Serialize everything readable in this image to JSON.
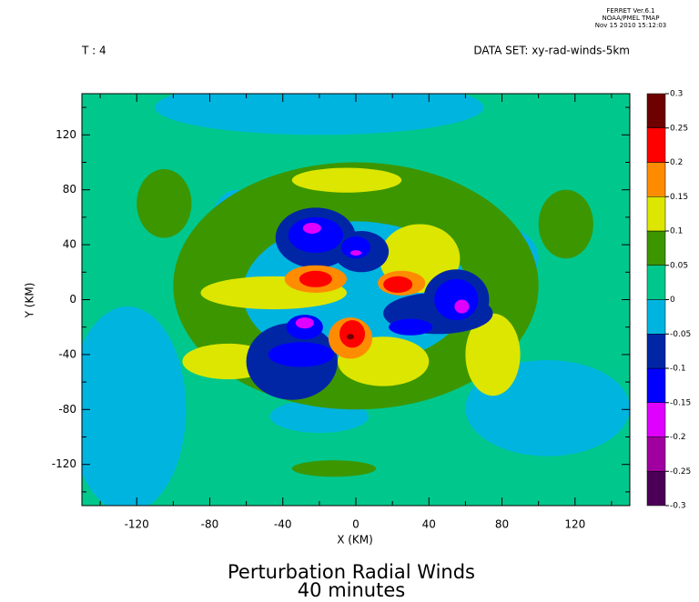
{
  "chart_data": {
    "type": "contour",
    "stamp": [
      "FERRET Ver.6.1",
      "NOAA/PMEL TMAP",
      "Nov 15 2010 15:12:03"
    ],
    "time_label": "T : 4",
    "dataset_label": "DATA SET: xy-rad-winds-5km",
    "title": "Perturbation Radial Winds",
    "subtitle": "40 minutes",
    "xlabel": "X (KM)",
    "ylabel": "Y (KM)",
    "xlim": [
      -150,
      150
    ],
    "ylim": [
      -150,
      150
    ],
    "xticks": [
      -120,
      -80,
      -40,
      0,
      40,
      80,
      120
    ],
    "yticks": [
      -120,
      -80,
      -40,
      0,
      40,
      80,
      120
    ],
    "xminor": [
      -140,
      -100,
      -60,
      -20,
      20,
      60,
      100,
      140
    ],
    "yminor": [
      -140,
      -100,
      -60,
      -20,
      20,
      60,
      100,
      140
    ],
    "levels": [
      -0.3,
      -0.25,
      -0.2,
      -0.15,
      -0.1,
      -0.05,
      0,
      0.05,
      0.1,
      0.15,
      0.2,
      0.25,
      0.3
    ],
    "colors": [
      "#4b0055",
      "#a000a0",
      "#e000ff",
      "#0000ff",
      "#0026a6",
      "#00b4e0",
      "#00c88c",
      "#3c9600",
      "#dce600",
      "#ff8c00",
      "#ff0000",
      "#6e0000"
    ],
    "background": 0.02,
    "regions": [
      {
        "x": -20,
        "y": 140,
        "rx": 90,
        "ry": 20,
        "value": -0.03
      },
      {
        "x": -125,
        "y": -80,
        "rx": 32,
        "ry": 75,
        "value": -0.03
      },
      {
        "x": 105,
        "y": -79,
        "rx": 45,
        "ry": 35,
        "value": -0.03
      },
      {
        "x": -20,
        "y": -85,
        "rx": 27,
        "ry": 12,
        "value": -0.03
      },
      {
        "x": -65,
        "y": 52,
        "rx": 15,
        "ry": 28,
        "value": -0.03
      },
      {
        "x": 80,
        "y": 30,
        "rx": 20,
        "ry": 23,
        "value": -0.03
      },
      {
        "x": 0,
        "y": 10,
        "rx": 100,
        "ry": 90,
        "value": 0.07
      },
      {
        "x": -105,
        "y": 70,
        "rx": 15,
        "ry": 25,
        "value": 0.07
      },
      {
        "x": 115,
        "y": 55,
        "rx": 15,
        "ry": 25,
        "value": 0.07
      },
      {
        "x": -12,
        "y": -123,
        "rx": 23,
        "ry": 6,
        "value": 0.07
      },
      {
        "x": 0,
        "y": 5,
        "rx": 62,
        "ry": 52,
        "value": -0.03
      },
      {
        "x": -5,
        "y": 87,
        "rx": 30,
        "ry": 9,
        "value": 0.12
      },
      {
        "x": -45,
        "y": 5,
        "rx": 40,
        "ry": 12,
        "value": 0.12
      },
      {
        "x": -70,
        "y": -45,
        "rx": 25,
        "ry": 13,
        "value": 0.12
      },
      {
        "x": 35,
        "y": 30,
        "rx": 22,
        "ry": 25,
        "value": 0.12
      },
      {
        "x": 15,
        "y": -45,
        "rx": 25,
        "ry": 18,
        "value": 0.12
      },
      {
        "x": 75,
        "y": -40,
        "rx": 15,
        "ry": 30,
        "value": 0.12
      },
      {
        "x": -22,
        "y": 45,
        "rx": 22,
        "ry": 22,
        "value": -0.07
      },
      {
        "x": 3,
        "y": 35,
        "rx": 15,
        "ry": 15,
        "value": -0.07
      },
      {
        "x": 45,
        "y": -10,
        "rx": 30,
        "ry": 15,
        "value": -0.07
      },
      {
        "x": 55,
        "y": 0,
        "rx": 18,
        "ry": 22,
        "value": -0.07
      },
      {
        "x": -35,
        "y": -45,
        "rx": 25,
        "ry": 28,
        "value": -0.07
      },
      {
        "x": -22,
        "y": 47,
        "rx": 15,
        "ry": 13,
        "value": -0.12
      },
      {
        "x": 0,
        "y": 38,
        "rx": 8,
        "ry": 8,
        "value": -0.12
      },
      {
        "x": -30,
        "y": -40,
        "rx": 18,
        "ry": 9,
        "value": -0.12
      },
      {
        "x": -28,
        "y": -20,
        "rx": 10,
        "ry": 9,
        "value": -0.12
      },
      {
        "x": 55,
        "y": 0,
        "rx": 12,
        "ry": 15,
        "value": -0.12
      },
      {
        "x": 30,
        "y": -20,
        "rx": 12,
        "ry": 6,
        "value": -0.12
      },
      {
        "x": -24,
        "y": 52,
        "rx": 5,
        "ry": 4,
        "value": -0.17
      },
      {
        "x": 0,
        "y": 34,
        "rx": 3,
        "ry": 2,
        "value": -0.17
      },
      {
        "x": -28,
        "y": -17,
        "rx": 5,
        "ry": 4,
        "value": -0.17
      },
      {
        "x": 58,
        "y": -5,
        "rx": 4,
        "ry": 5,
        "value": -0.17
      },
      {
        "x": -22,
        "y": 15,
        "rx": 17,
        "ry": 10,
        "value": 0.17
      },
      {
        "x": 25,
        "y": 12,
        "rx": 13,
        "ry": 9,
        "value": 0.17
      },
      {
        "x": -3,
        "y": -28,
        "rx": 12,
        "ry": 15,
        "value": 0.17
      },
      {
        "x": -22,
        "y": 15,
        "rx": 9,
        "ry": 6,
        "value": 0.22
      },
      {
        "x": 23,
        "y": 11,
        "rx": 8,
        "ry": 6,
        "value": 0.22
      },
      {
        "x": -2,
        "y": -25,
        "rx": 7,
        "ry": 10,
        "value": 0.22
      },
      {
        "x": -3,
        "y": -27,
        "rx": 2,
        "ry": 2,
        "value": 0.27
      }
    ]
  }
}
